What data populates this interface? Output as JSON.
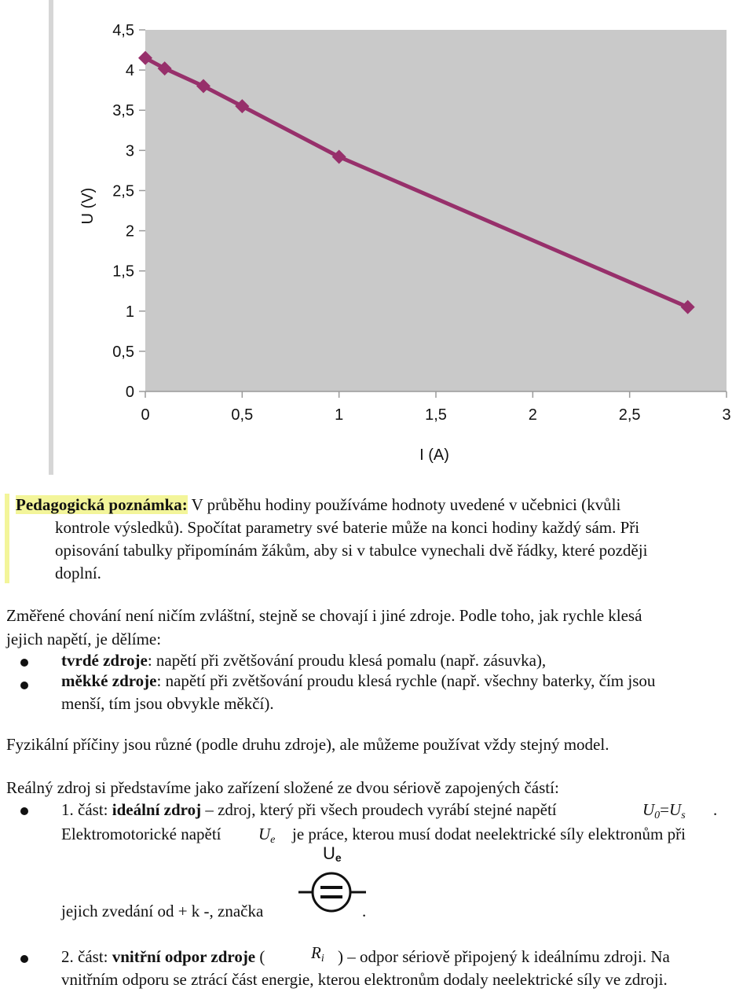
{
  "chart_data": {
    "type": "line",
    "xlabel": "I (A)",
    "ylabel": "U (V)",
    "xlim": [
      0,
      3
    ],
    "ylim": [
      0,
      4.5
    ],
    "x_ticks": [
      "0",
      "0,5",
      "1",
      "1,5",
      "2",
      "2,5",
      "3"
    ],
    "y_ticks": [
      "0",
      "0,5",
      "1",
      "1,5",
      "2",
      "2,5",
      "3",
      "3,5",
      "4",
      "4,5"
    ],
    "series": [
      {
        "x": [
          0.0,
          0.1,
          0.3,
          0.5,
          1.0,
          2.8
        ],
        "y": [
          4.15,
          4.02,
          3.8,
          3.55,
          2.92,
          1.05
        ]
      }
    ],
    "grid": false,
    "plot_background": "#c9c9c9",
    "line_color": "#97306b"
  },
  "note": {
    "label": "Pedagogická poznámka:",
    "lines": [
      " V průběhu hodiny používáme hodnoty uvedené v učebnici (kvůli",
      "kontrole výsledků). Spočítat parametry své baterie může na konci hodiny každý sám. Při",
      "opisování tabulky připomínám žákům, aby si v tabulce vynechali dvě řádky, které později",
      "doplní."
    ]
  },
  "para1": {
    "lines": [
      "Změřené chování není ničím zvláštní, stejně se chovají i jiné zdroje. Podle toho, jak rychle klesá",
      "jejich napětí, je dělíme:"
    ]
  },
  "bullets1": [
    {
      "bold": "tvrdé zdroje",
      "rest": ": napětí při zvětšování proudu klesá pomalu (např. zásuvka),"
    },
    {
      "bold": "měkké zdroje",
      "rest": ":  napětí při zvětšování proudu klesá rychle (např. všechny baterky, čím jsou",
      "rest2": "menší, tím jsou obvykle měkčí)."
    }
  ],
  "para2": "Fyzikální příčiny jsou různé (podle druhu zdroje), ale můžeme používat vždy stejný model.",
  "para3": "Reálný zdroj si představíme jako zařízení složené ze dvou sériově zapojených částí:",
  "item1": {
    "prefix": "1. část: ",
    "bold": "ideální zdroj",
    "rest": " – zdroj, který při všech proudech vyrábí stejné napětí",
    "math_U": "U",
    "math_0": "0",
    "math_eq": "=",
    "math_U2": "U",
    "math_s": "s",
    "end": ".",
    "line2a": "Elektromotorické napětí",
    "math_Ue": "U",
    "math_e": "e",
    "line2b": "je práce, kterou musí dodat neelektrické síly elektronům při",
    "symbol_label_U": "U",
    "symbol_label_e": "e",
    "line3": "jejich zvedání od + k -, značka",
    "line3_end": "."
  },
  "item2": {
    "prefix": "2. část: ",
    "bold": "vnitřní odpor zdroje",
    "open": " (",
    "math_R": "R",
    "math_i": "i",
    "rest": ") – odpor sériově připojený k ideálnímu zdroji. Na",
    "line2": "vnitřním odporu se ztrácí část energie, kterou elektronům dodaly neelektrické síly ve zdroji."
  }
}
